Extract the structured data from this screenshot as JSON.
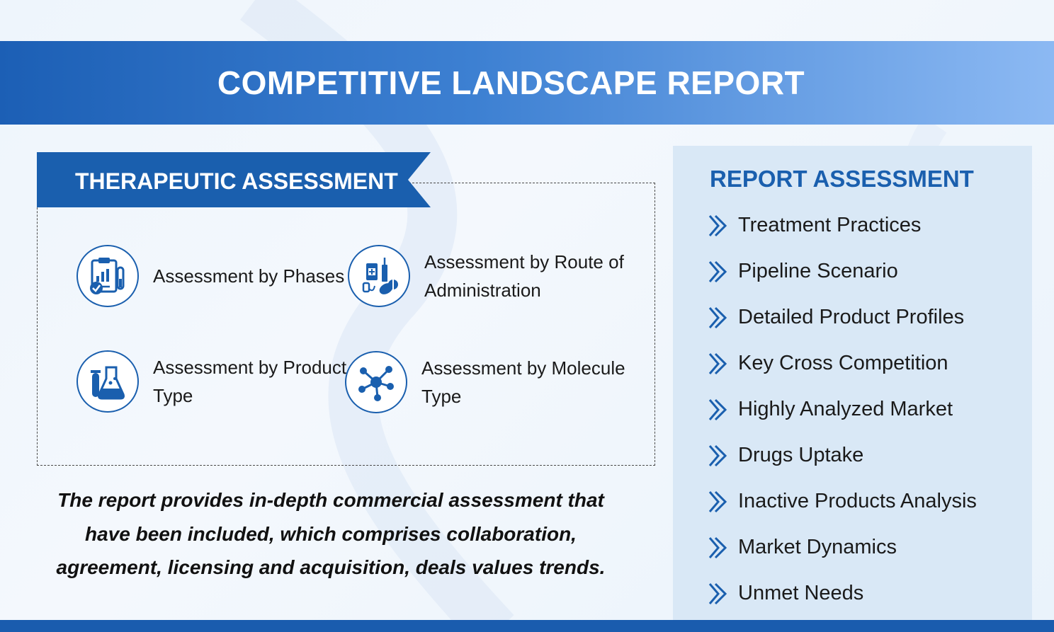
{
  "header": {
    "title": "COMPETITIVE LANDSCAPE REPORT"
  },
  "therapeutic": {
    "title": "THERAPEUTIC ASSESSMENT",
    "items": [
      {
        "label": "Assessment by Phases",
        "icon": "clipboard-chart-icon"
      },
      {
        "label": "Assessment by Route of Administration",
        "icon": "medication-route-icon"
      },
      {
        "label": "Assessment by Product Type",
        "icon": "flask-icon"
      },
      {
        "label": "Assessment by Molecule Type",
        "icon": "molecule-icon"
      }
    ]
  },
  "summary": "The report provides in-depth commercial assessment that have been included, which comprises collaboration, agreement, licensing and acquisition, deals values trends.",
  "report_assessment": {
    "title": "REPORT ASSESSMENT",
    "items": [
      "Treatment Practices",
      "Pipeline Scenario",
      "Detailed Product Profiles",
      "Key Cross Competition",
      "Highly Analyzed Market",
      "Drugs Uptake",
      "Inactive Products Analysis",
      "Market Dynamics",
      "Unmet Needs"
    ]
  },
  "colors": {
    "primary": "#1a5fae",
    "header_start": "#1c5fb5",
    "header_end": "#8cb9f3",
    "panel_bg": "#d9e8f6"
  }
}
